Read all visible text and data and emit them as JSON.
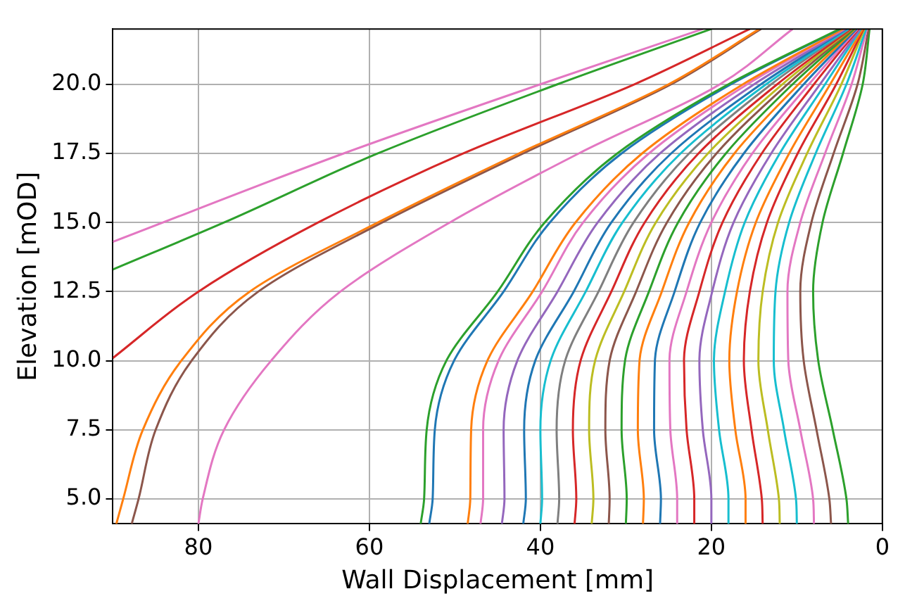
{
  "chart_data": {
    "type": "line",
    "xlabel": "Wall Displacement [mm]",
    "ylabel": "Elevation [mOD]",
    "xlim": [
      90,
      0
    ],
    "ylim": [
      4.1,
      22
    ],
    "xticks": [
      80,
      60,
      40,
      20,
      0
    ],
    "yticks": [
      {
        "value": 5,
        "label": "5.0"
      },
      {
        "value": 7.5,
        "label": "7.5"
      },
      {
        "value": 10,
        "label": "10.0"
      },
      {
        "value": 12.5,
        "label": "12.5"
      },
      {
        "value": 15,
        "label": "15.0"
      },
      {
        "value": 17.5,
        "label": "17.5"
      },
      {
        "value": 20,
        "label": "20.0"
      }
    ],
    "grid": true,
    "marker": "none",
    "line_style": "solid",
    "series": [
      {
        "color": "#e377c2",
        "x": [
          90,
          63,
          40,
          21
        ],
        "values": [
          14.3,
          17.5,
          20,
          22
        ]
      },
      {
        "color": "#2ca02c",
        "x": [
          90,
          77,
          59,
          38,
          20
        ],
        "values": [
          13.3,
          15,
          17.5,
          20,
          22
        ]
      },
      {
        "color": "#d62728",
        "x": [
          90,
          80,
          66,
          49,
          29,
          15.5
        ],
        "values": [
          10.1,
          12.5,
          15,
          17.5,
          20,
          22
        ]
      },
      {
        "color": "#ff7f0e",
        "x": [
          89.6,
          88.8,
          86.5,
          82,
          74,
          59,
          42.5,
          25,
          14.4
        ],
        "values": [
          4.1,
          5,
          7.5,
          10,
          12.5,
          15,
          17.5,
          20,
          22
        ]
      },
      {
        "color": "#8c564b",
        "x": [
          87.8,
          87,
          85,
          80.8,
          73,
          58.5,
          42,
          24.7,
          14.2
        ],
        "values": [
          4.1,
          5,
          7.5,
          10,
          12.5,
          15,
          17.5,
          20,
          22
        ]
      },
      {
        "color": "#e377c2",
        "x": [
          80,
          79.5,
          77,
          71.5,
          63.4,
          50.6,
          35.5,
          19,
          10.5
        ],
        "values": [
          4.1,
          5,
          7.5,
          10,
          12.5,
          15,
          17.5,
          20,
          22
        ]
      },
      {
        "color": "#2ca02c",
        "x": [
          54,
          53.6,
          53.3,
          51,
          45,
          39.5,
          31,
          18,
          5
        ],
        "values": [
          4.1,
          5,
          7.5,
          10,
          12.5,
          15,
          17.5,
          20,
          22
        ]
      },
      {
        "color": "#1f77b4",
        "x": [
          53,
          52.6,
          52.35,
          50.1,
          44.3,
          38.9,
          30.5,
          17.7,
          4.9
        ],
        "values": [
          4.1,
          5,
          7.5,
          10,
          12.5,
          15,
          17.5,
          20,
          22
        ]
      },
      {
        "color": "#ff7f0e",
        "x": [
          48.5,
          48.2,
          48.1,
          46.2,
          40.9,
          35.9,
          28.1,
          16.3,
          4.6
        ],
        "values": [
          4.1,
          5,
          7.5,
          10,
          12.5,
          15,
          17.5,
          20,
          22
        ]
      },
      {
        "color": "#e377c2",
        "x": [
          47,
          46.7,
          46.7,
          44.9,
          39.8,
          35,
          27.3,
          15.8,
          4.5
        ],
        "values": [
          4.1,
          5,
          7.5,
          10,
          12.5,
          15,
          17.5,
          20,
          22
        ]
      },
      {
        "color": "#9467bd",
        "x": [
          44.5,
          44.2,
          44.3,
          42.7,
          38,
          33.3,
          26,
          15,
          4.3
        ],
        "values": [
          4.1,
          5,
          7.5,
          10,
          12.5,
          15,
          17.5,
          20,
          22
        ]
      },
      {
        "color": "#1f77b4",
        "x": [
          42,
          41.7,
          41.9,
          40.6,
          36.1,
          31.7,
          24.7,
          14.2,
          4.2
        ],
        "values": [
          4.1,
          5,
          7.5,
          10,
          12.5,
          15,
          17.5,
          20,
          22
        ]
      },
      {
        "color": "#17becf",
        "x": [
          40,
          39.8,
          40,
          38.8,
          34.7,
          30.4,
          23.6,
          13.6,
          4
        ],
        "values": [
          4.1,
          5,
          7.5,
          10,
          12.5,
          15,
          17.5,
          20,
          22
        ]
      },
      {
        "color": "#7f7f7f",
        "x": [
          38,
          37.8,
          38.1,
          37.1,
          33.2,
          29.1,
          22.6,
          13,
          3.9
        ],
        "values": [
          4.1,
          5,
          7.5,
          10,
          12.5,
          15,
          17.5,
          20,
          22
        ]
      },
      {
        "color": "#d62728",
        "x": [
          36,
          35.8,
          36.2,
          35.3,
          31.7,
          27.8,
          21.5,
          12.3,
          3.7
        ],
        "values": [
          4.1,
          5,
          7.5,
          10,
          12.5,
          15,
          17.5,
          20,
          22
        ]
      },
      {
        "color": "#bcbd22",
        "x": [
          34,
          33.8,
          34.3,
          33.6,
          30.2,
          26.5,
          20.4,
          11.7,
          3.6
        ],
        "values": [
          4.1,
          5,
          7.5,
          10,
          12.5,
          15,
          17.5,
          20,
          22
        ]
      },
      {
        "color": "#8c564b",
        "x": [
          32,
          31.9,
          32.4,
          31.9,
          28.8,
          25.2,
          19.4,
          11.1,
          3.5
        ],
        "values": [
          4.1,
          5,
          7.5,
          10,
          12.5,
          15,
          17.5,
          20,
          22
        ]
      },
      {
        "color": "#2ca02c",
        "x": [
          30,
          29.9,
          30.5,
          30.1,
          27.3,
          23.9,
          18.3,
          10.5,
          3.3
        ],
        "values": [
          4.1,
          5,
          7.5,
          10,
          12.5,
          15,
          17.5,
          20,
          22
        ]
      },
      {
        "color": "#ff7f0e",
        "x": [
          28,
          27.9,
          28.6,
          28.4,
          25.8,
          22.6,
          17.3,
          9.8,
          3.2
        ],
        "values": [
          4.1,
          5,
          7.5,
          10,
          12.5,
          15,
          17.5,
          20,
          22
        ]
      },
      {
        "color": "#1f77b4",
        "x": [
          26,
          25.9,
          26.7,
          26.6,
          24.3,
          21.3,
          16.2,
          9.2,
          3
        ],
        "values": [
          4.1,
          5,
          7.5,
          10,
          12.5,
          15,
          17.5,
          20,
          22
        ]
      },
      {
        "color": "#e377c2",
        "x": [
          24,
          24,
          24.8,
          24.9,
          22.9,
          20,
          15.2,
          8.6,
          2.9
        ],
        "values": [
          4.1,
          5,
          7.5,
          10,
          12.5,
          15,
          17.5,
          20,
          22
        ]
      },
      {
        "color": "#d62728",
        "x": [
          22,
          22,
          22.9,
          23.2,
          21.4,
          18.7,
          14.1,
          8,
          2.8
        ],
        "values": [
          4.1,
          5,
          7.5,
          10,
          12.5,
          15,
          17.5,
          20,
          22
        ]
      },
      {
        "color": "#9467bd",
        "x": [
          20,
          20,
          21,
          21.4,
          19.9,
          17.4,
          13,
          7.3,
          2.6
        ],
        "values": [
          4.1,
          5,
          7.5,
          10,
          12.5,
          15,
          17.5,
          20,
          22
        ]
      },
      {
        "color": "#17becf",
        "x": [
          18,
          18,
          19.1,
          19.7,
          18.4,
          16.1,
          12,
          6.7,
          2.5
        ],
        "values": [
          4.1,
          5,
          7.5,
          10,
          12.5,
          15,
          17.5,
          20,
          22
        ]
      },
      {
        "color": "#ff7f0e",
        "x": [
          16,
          16,
          17.2,
          17.9,
          17,
          14.8,
          10.9,
          6.1,
          2.3
        ],
        "values": [
          4.1,
          5,
          7.5,
          10,
          12.5,
          15,
          17.5,
          20,
          22
        ]
      },
      {
        "color": "#d62728",
        "x": [
          14,
          14.1,
          15.3,
          16.2,
          15.5,
          13.5,
          9.9,
          5.4,
          2.2
        ],
        "values": [
          4.1,
          5,
          7.5,
          10,
          12.5,
          15,
          17.5,
          20,
          22
        ]
      },
      {
        "color": "#bcbd22",
        "x": [
          12,
          12.1,
          13.4,
          14.5,
          14,
          12.2,
          8.8,
          4.8,
          2.1
        ],
        "values": [
          4.1,
          5,
          7.5,
          10,
          12.5,
          15,
          17.5,
          20,
          22
        ]
      },
      {
        "color": "#17becf",
        "x": [
          10,
          10.1,
          11.5,
          12.7,
          12.5,
          10.9,
          7.8,
          4.2,
          1.9
        ],
        "values": [
          4.1,
          5,
          7.5,
          10,
          12.5,
          15,
          17.5,
          20,
          22
        ]
      },
      {
        "color": "#e377c2",
        "x": [
          8,
          8.1,
          9.6,
          11,
          11.1,
          9.6,
          6.7,
          3.6,
          1.8
        ],
        "values": [
          4.1,
          5,
          7.5,
          10,
          12.5,
          15,
          17.5,
          20,
          22
        ]
      },
      {
        "color": "#8c564b",
        "x": [
          6,
          6.2,
          7.7,
          9.2,
          9.6,
          8.3,
          5.7,
          2.9,
          1.6
        ],
        "values": [
          4.1,
          5,
          7.5,
          10,
          12.5,
          15,
          17.5,
          20,
          22
        ]
      },
      {
        "color": "#2ca02c",
        "x": [
          4,
          4.2,
          5.8,
          7.5,
          8.1,
          7,
          4.6,
          2.3,
          1.5
        ],
        "values": [
          4.1,
          5,
          7.5,
          10,
          12.5,
          15,
          17.5,
          20,
          22
        ]
      }
    ]
  }
}
